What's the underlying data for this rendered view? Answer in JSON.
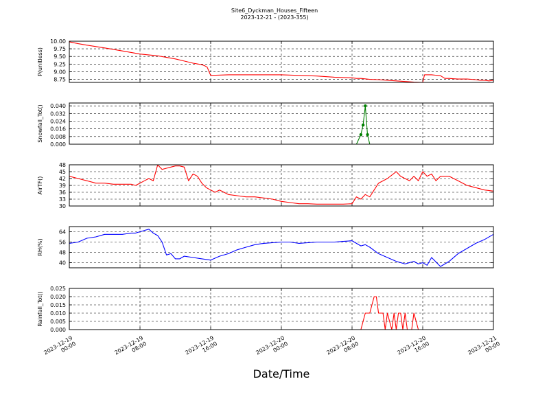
{
  "chart_data": {
    "type": "line",
    "title": "Site6_Dyckman_Houses_Fifteen",
    "subtitle": "2023-12-21 - (2023-355)",
    "xlabel": "Date/Time",
    "x_range": [
      "2023-12-19 00:00",
      "2023-12-21 00:00"
    ],
    "x_tick_labels": [
      [
        "2023-12-19",
        "00:00"
      ],
      [
        "2023-12-19",
        "08:00"
      ],
      [
        "2023-12-19",
        "16:00"
      ],
      [
        "2023-12-20",
        "00:00"
      ],
      [
        "2023-12-20",
        "08:00"
      ],
      [
        "2023-12-20",
        "16:00"
      ],
      [
        "2023-12-21",
        "00:00"
      ]
    ],
    "grid": true,
    "panels": [
      {
        "ylabel": "P(unitless)",
        "color": "#ff0000",
        "ylim": [
          8.65,
          10.0
        ],
        "yticks": [
          "10.00",
          "9.75",
          "9.50",
          "9.25",
          "9.00",
          "8.75"
        ],
        "series": {
          "hours": [
            0,
            1,
            2,
            4,
            6,
            8,
            10,
            12,
            13,
            14,
            15,
            15.3,
            15.6,
            16,
            18,
            20,
            22,
            24,
            26,
            28,
            30,
            31,
            32,
            32.5,
            33,
            34,
            35,
            36,
            37,
            38,
            39,
            40,
            40.2,
            41,
            42,
            42.5,
            43,
            43.5,
            44,
            45,
            46,
            46.5,
            47,
            47.5,
            48
          ],
          "values": [
            9.98,
            9.92,
            9.87,
            9.78,
            9.68,
            9.58,
            9.52,
            9.42,
            9.35,
            9.28,
            9.23,
            9.2,
            9.15,
            8.88,
            8.9,
            8.9,
            8.9,
            8.9,
            8.88,
            8.86,
            8.82,
            8.81,
            8.8,
            8.78,
            8.78,
            8.75,
            8.74,
            8.72,
            8.7,
            8.68,
            8.66,
            8.65,
            8.9,
            8.9,
            8.87,
            8.78,
            8.78,
            8.77,
            8.76,
            8.76,
            8.74,
            8.72,
            8.72,
            8.7,
            8.72
          ]
        }
      },
      {
        "ylabel": "Snowfall_Tot()",
        "color": "#008000",
        "ylim": [
          0,
          0.043
        ],
        "yticks": [
          "0.040",
          "0.032",
          "0.024",
          "0.016",
          "0.008",
          "0.000"
        ],
        "series": {
          "hours": [
            0,
            32.5,
            33,
            33.25,
            33.5,
            33.75,
            34,
            48
          ],
          "values": [
            0.0,
            0.0,
            0.01,
            0.02,
            0.04,
            0.01,
            0.0,
            0.0
          ]
        }
      },
      {
        "ylabel": "AirTF()",
        "color": "#ff0000",
        "ylim": [
          30,
          48
        ],
        "yticks": [
          "48",
          "45",
          "42",
          "39",
          "36",
          "33",
          "30"
        ],
        "series": {
          "hours": [
            0,
            1,
            2,
            3,
            4,
            5,
            6,
            7,
            7.5,
            8,
            8.5,
            9,
            9.5,
            10,
            10.5,
            11,
            11.5,
            12,
            12.5,
            13,
            13.5,
            14,
            14.5,
            15,
            15.5,
            16,
            16.5,
            17,
            18,
            19,
            20,
            21,
            22,
            23,
            24,
            25,
            26,
            27,
            28,
            29,
            30,
            31,
            32,
            32.5,
            33,
            33.5,
            34,
            34.5,
            35,
            36,
            37,
            37.5,
            38,
            38.5,
            39,
            39.5,
            40,
            40.5,
            41,
            41.5,
            42,
            43,
            44,
            45,
            46,
            47,
            48
          ],
          "values": [
            43,
            42,
            41,
            40,
            40,
            39.5,
            39.5,
            39.5,
            39,
            40,
            41,
            42,
            41,
            48,
            46,
            46.5,
            47,
            47.5,
            47.5,
            47,
            41,
            44,
            43,
            40,
            38,
            37,
            36,
            37,
            35,
            34.5,
            34,
            34,
            33.5,
            33,
            32,
            31.5,
            31,
            31,
            30.8,
            30.8,
            30.8,
            30.8,
            31,
            34,
            33,
            35,
            34,
            37,
            40,
            42,
            45,
            43,
            42,
            41,
            43,
            41,
            45,
            43,
            44,
            41,
            43,
            43,
            41,
            39,
            38,
            37,
            36.5
          ]
        }
      },
      {
        "ylabel": "RH(%)",
        "color": "#0000ff",
        "ylim": [
          36,
          68
        ],
        "yticks": [
          "64",
          "56",
          "48",
          "40"
        ],
        "series": {
          "hours": [
            0,
            1,
            2,
            3,
            4,
            5,
            6,
            7,
            7.5,
            8,
            8.5,
            9,
            9.5,
            10,
            10.5,
            11,
            11.5,
            12,
            12.5,
            13,
            14,
            15,
            16,
            17,
            18,
            19,
            20,
            21,
            22,
            23,
            24,
            25,
            26,
            27,
            28,
            29,
            30,
            31,
            32,
            32.5,
            33,
            33.5,
            34,
            35,
            36,
            37,
            38,
            39,
            39.5,
            40,
            40.5,
            41,
            42,
            43,
            44,
            45,
            46,
            47,
            48
          ],
          "values": [
            55,
            56,
            59,
            60,
            62,
            62,
            62,
            63,
            63,
            64,
            65,
            66,
            63,
            61,
            56,
            46,
            47,
            43,
            43,
            45,
            44,
            43,
            42,
            45,
            47,
            50,
            52,
            54,
            55,
            55.5,
            56,
            56,
            55,
            55.5,
            56,
            56,
            56,
            56.5,
            57,
            55,
            53,
            54,
            52,
            47,
            44,
            41,
            39,
            41,
            39,
            40,
            38,
            44,
            37,
            41,
            47,
            51,
            55,
            58,
            62
          ]
        }
      },
      {
        "ylabel": "Rainfall_Tot()",
        "color": "#ff0000",
        "ylim": [
          0,
          0.025
        ],
        "yticks": [
          "0.025",
          "0.020",
          "0.015",
          "0.010",
          "0.005",
          "0.000"
        ],
        "series": {
          "hours": [
            0,
            33.0,
            33.5,
            34.0,
            34.5,
            34.75,
            35.0,
            35.5,
            35.75,
            36.0,
            36.5,
            36.75,
            37.0,
            37.25,
            37.5,
            37.75,
            38.0,
            38.25,
            38.5,
            38.75,
            39.0,
            39.5,
            39.75,
            40.0,
            48
          ],
          "values": [
            0,
            0,
            0.01,
            0.01,
            0.02,
            0.02,
            0.01,
            0.01,
            0.0,
            0.01,
            0.0,
            0.01,
            0.0,
            0.01,
            0.01,
            0.0,
            0.01,
            0.0,
            0.0,
            0.0,
            0.01,
            0.0,
            0.0,
            0.0,
            0
          ]
        }
      }
    ]
  }
}
